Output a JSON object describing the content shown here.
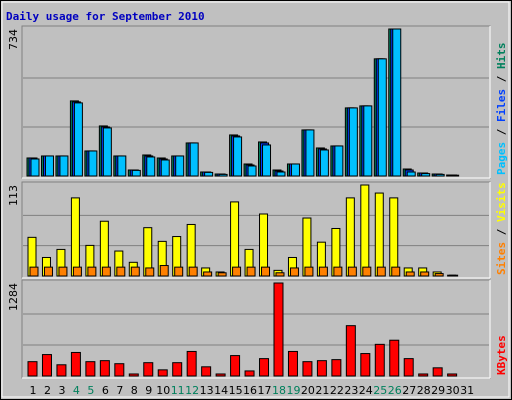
{
  "title": "Daily usage for September 2010",
  "chart_data": [
    {
      "type": "bar",
      "legend_separator": " / ",
      "ylim": [
        0,
        734
      ],
      "yticks": [
        734
      ],
      "grid": true,
      "series": [
        {
          "name": "Hits",
          "color": "#00805c",
          "values": [
            90,
            100,
            100,
            375,
            125,
            250,
            100,
            30,
            105,
            90,
            100,
            165,
            20,
            10,
            205,
            60,
            170,
            30,
            60,
            230,
            140,
            150,
            340,
            350,
            585,
            734,
            35,
            15,
            10,
            5,
            0
          ]
        },
        {
          "name": "Files",
          "color": "#0040ff",
          "values": [
            90,
            100,
            100,
            370,
            125,
            245,
            100,
            30,
            100,
            85,
            100,
            165,
            20,
            10,
            200,
            55,
            165,
            25,
            60,
            230,
            135,
            150,
            340,
            350,
            585,
            734,
            30,
            15,
            10,
            5,
            0
          ]
        },
        {
          "name": "Pages",
          "color": "#00c0ff",
          "values": [
            85,
            100,
            100,
            365,
            125,
            240,
            100,
            28,
            95,
            80,
            100,
            165,
            18,
            8,
            195,
            50,
            155,
            20,
            60,
            230,
            130,
            150,
            340,
            350,
            585,
            734,
            20,
            12,
            8,
            4,
            0
          ]
        }
      ]
    },
    {
      "type": "bar",
      "legend_separator": " / ",
      "ylim": [
        0,
        113
      ],
      "yticks": [
        113
      ],
      "grid": true,
      "series": [
        {
          "name": "Visits",
          "color": "#ffff00",
          "values": [
            48,
            23,
            33,
            97,
            38,
            68,
            31,
            17,
            60,
            43,
            49,
            64,
            10,
            5,
            92,
            33,
            77,
            7,
            23,
            72,
            42,
            59,
            97,
            113,
            103,
            97,
            10,
            10,
            5,
            1,
            0
          ]
        },
        {
          "name": "Sites",
          "color": "#ff8000",
          "values": [
            11,
            11,
            11,
            11,
            11,
            11,
            11,
            11,
            10,
            13,
            11,
            11,
            5,
            4,
            11,
            11,
            11,
            4,
            10,
            11,
            11,
            11,
            11,
            11,
            11,
            11,
            5,
            5,
            3,
            1,
            0
          ]
        }
      ]
    },
    {
      "type": "bar",
      "legend_separator": " / ",
      "ylim": [
        0,
        1284
      ],
      "yticks": [
        1284
      ],
      "grid": true,
      "categories": [
        "1",
        "2",
        "3",
        "4",
        "5",
        "6",
        "7",
        "8",
        "9",
        "10",
        "11",
        "12",
        "13",
        "14",
        "15",
        "16",
        "17",
        "18",
        "19",
        "20",
        "21",
        "22",
        "23",
        "24",
        "25",
        "26",
        "27",
        "28",
        "29",
        "30",
        "31"
      ],
      "weekend_categories": [
        "4",
        "5",
        "11",
        "12",
        "18",
        "19",
        "25",
        "26"
      ],
      "weekend_color": "#00805c",
      "series": [
        {
          "name": "KBytes",
          "color": "#ff0000",
          "values": [
            198,
            296,
            155,
            325,
            198,
            212,
            170,
            28,
            184,
            85,
            184,
            339,
            127,
            28,
            282,
            70,
            240,
            1284,
            339,
            198,
            212,
            226,
            695,
            310,
            437,
            494,
            240,
            28,
            113,
            28,
            0
          ]
        }
      ]
    }
  ]
}
